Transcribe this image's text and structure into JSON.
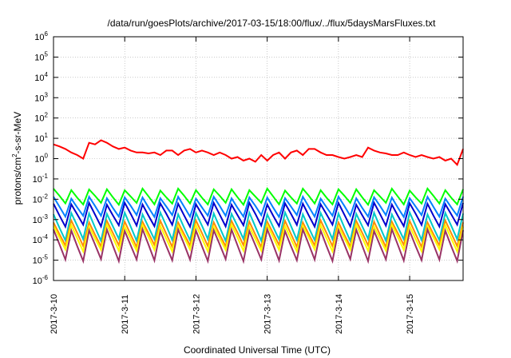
{
  "chart_data": {
    "type": "line",
    "title": "/data/run/goesPlots/archive/2017-03-15/18:00/flux/../flux/5daysMarsFluxes.txt",
    "xlabel": "Coordinated Universal Time (UTC)",
    "ylabel": "protons/cm2-s-sr-MeV",
    "ylabel_parts": {
      "pre": "protons/cm",
      "sup": "2",
      "post": "-s-sr-MeV"
    },
    "yscale": "log",
    "ylim": [
      1e-06,
      1000000.0
    ],
    "xlim": [
      "2017-03-10 00:00",
      "2017-03-15 18:00"
    ],
    "grid": true,
    "x_tick_labels": [
      "2017-3-10",
      "2017-3-11",
      "2017-3-12",
      "2017-3-13",
      "2017-3-14",
      "2017-3-15"
    ],
    "y_tick_labels": [
      {
        "base": "10",
        "exp": "-6"
      },
      {
        "base": "10",
        "exp": "-5"
      },
      {
        "base": "10",
        "exp": "-4"
      },
      {
        "base": "10",
        "exp": "-3"
      },
      {
        "base": "10",
        "exp": "-2"
      },
      {
        "base": "10",
        "exp": "-1"
      },
      {
        "base": "10",
        "exp": "0"
      },
      {
        "base": "10",
        "exp": "1"
      },
      {
        "base": "10",
        "exp": "2"
      },
      {
        "base": "10",
        "exp": "3"
      },
      {
        "base": "10",
        "exp": "4"
      },
      {
        "base": "10",
        "exp": "5"
      },
      {
        "base": "10",
        "exp": "6"
      }
    ],
    "x_hours_from_start": [
      0,
      2,
      4,
      6,
      8,
      10,
      12,
      14,
      16,
      18,
      20,
      22,
      24,
      26,
      28,
      30,
      32,
      34,
      36,
      38,
      40,
      42,
      44,
      46,
      48,
      50,
      52,
      54,
      56,
      58,
      60,
      62,
      64,
      66,
      68,
      70,
      72,
      74,
      76,
      78,
      80,
      82,
      84,
      86,
      88,
      90,
      92,
      94,
      96,
      98,
      100,
      102,
      104,
      106,
      108,
      110,
      112,
      114,
      116,
      118,
      120,
      122,
      124,
      126,
      128,
      130,
      132,
      134,
      136,
      138
    ],
    "series": [
      {
        "color": "#ff0000",
        "values": [
          5,
          4,
          3,
          2,
          1.5,
          1,
          6,
          5,
          8,
          6,
          4,
          3,
          3.5,
          2.5,
          2,
          2,
          1.8,
          2,
          1.5,
          2.5,
          2.5,
          1.5,
          2.5,
          3,
          2,
          2.5,
          2,
          1.5,
          2,
          1.5,
          1,
          1.2,
          0.8,
          1,
          0.7,
          1.5,
          0.8,
          1.5,
          2,
          1,
          2,
          2.5,
          1.5,
          3,
          3,
          2,
          1.5,
          1.5,
          1.2,
          1,
          1.2,
          1.5,
          1.2,
          3.5,
          2.5,
          2,
          1.8,
          1.5,
          1.5,
          2,
          1.5,
          1.2,
          1.5,
          1.2,
          1,
          1.2,
          0.8,
          1,
          0.5,
          3
        ]
      },
      {
        "color": "#00ff00",
        "peak": 0.03,
        "trough": 0.006
      },
      {
        "color": "#0080ff",
        "peak": 0.012,
        "trough": 0.0015
      },
      {
        "color": "#0000cc",
        "peak": 0.006,
        "trough": 0.0005
      },
      {
        "color": "#00c8c8",
        "peak": 0.002,
        "trough": 0.0001
      },
      {
        "color": "#ff8c00",
        "peak": 0.0008,
        "trough": 5e-05
      },
      {
        "color": "#ffff00",
        "peak": 0.0005,
        "trough": 3e-05
      },
      {
        "color": "#993366",
        "peak": 0.0003,
        "trough": 1e-05
      }
    ]
  }
}
